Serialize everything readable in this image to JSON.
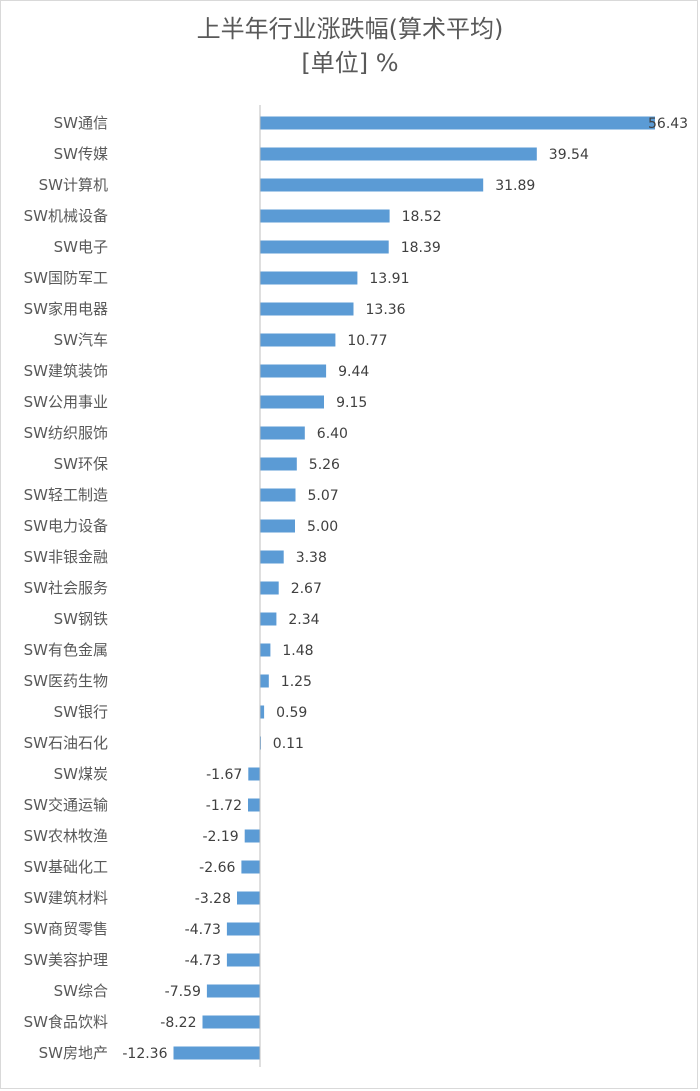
{
  "chart_data": {
    "type": "bar",
    "orientation": "horizontal",
    "title": "上半年行业涨跌幅(算术平均)",
    "subtitle": "[单位] %",
    "bar_color": "#5b9bd5",
    "categories": [
      "SW通信",
      "SW传媒",
      "SW计算机",
      "SW机械设备",
      "SW电子",
      "SW国防军工",
      "SW家用电器",
      "SW汽车",
      "SW建筑装饰",
      "SW公用事业",
      "SW纺织服饰",
      "SW环保",
      "SW轻工制造",
      "SW电力设备",
      "SW非银金融",
      "SW社会服务",
      "SW钢铁",
      "SW有色金属",
      "SW医药生物",
      "SW银行",
      "SW石油石化",
      "SW煤炭",
      "SW交通运输",
      "SW农林牧渔",
      "SW基础化工",
      "SW建筑材料",
      "SW商贸零售",
      "SW美容护理",
      "SW综合",
      "SW食品饮料",
      "SW房地产"
    ],
    "values": [
      56.43,
      39.54,
      31.89,
      18.52,
      18.39,
      13.91,
      13.36,
      10.77,
      9.44,
      9.15,
      6.4,
      5.26,
      5.07,
      5.0,
      3.38,
      2.67,
      2.34,
      1.48,
      1.25,
      0.59,
      0.11,
      -1.67,
      -1.72,
      -2.19,
      -2.66,
      -3.28,
      -4.73,
      -4.73,
      -7.59,
      -8.22,
      -12.36
    ],
    "value_labels": [
      "56.43",
      "39.54",
      "31.89",
      "18.52",
      "18.39",
      "13.91",
      "13.36",
      "10.77",
      "9.44",
      "9.15",
      "6.40",
      "5.26",
      "5.07",
      "5.00",
      "3.38",
      "2.67",
      "2.34",
      "1.48",
      "1.25",
      "0.59",
      "0.11",
      "-1.67",
      "-1.72",
      "-2.19",
      "-2.66",
      "-3.28",
      "-4.73",
      "-4.73",
      "-7.59",
      "-8.22",
      "-12.36"
    ],
    "xlim": [
      -15,
      60
    ],
    "grid": false,
    "legend": "none"
  }
}
